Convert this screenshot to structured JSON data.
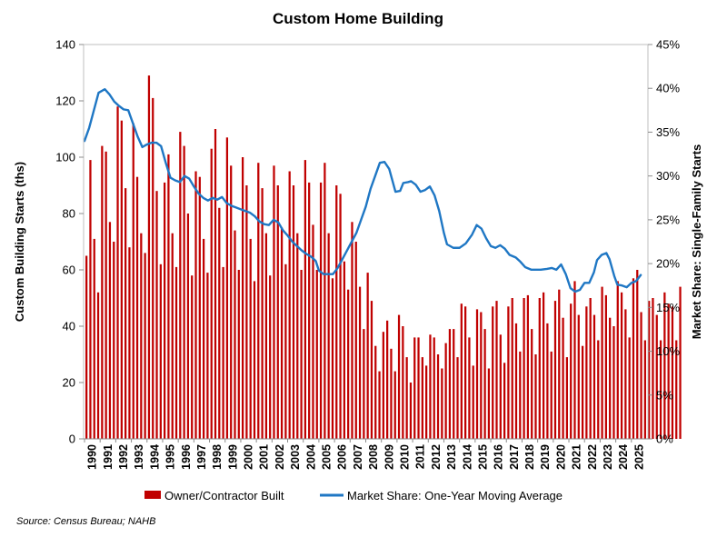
{
  "chart_data": {
    "type": "bar+line",
    "title": "Custom Home Building",
    "ylabel": "Custom Building Starts (ths)",
    "y2label": "Market Share: Single-Family Starts",
    "ylim": [
      0,
      140
    ],
    "yticks": [
      0,
      20,
      40,
      60,
      80,
      100,
      120,
      140
    ],
    "y2lim": [
      0,
      45
    ],
    "y2ticks": [
      "0%",
      "5%",
      "10%",
      "15%",
      "20%",
      "25%",
      "30%",
      "35%",
      "40%",
      "45%"
    ],
    "x_tick_labels": [
      "1990",
      "1991",
      "1992",
      "1993",
      "1994",
      "1995",
      "1996",
      "1997",
      "1998",
      "1999",
      "2000",
      "2001",
      "2002",
      "2003",
      "2004",
      "2005",
      "2006",
      "2007",
      "2008",
      "2009",
      "2010",
      "2011",
      "2012",
      "2013",
      "2014",
      "2015",
      "2016",
      "2017",
      "2018",
      "2019",
      "2020",
      "2021",
      "2022",
      "2023",
      "2024",
      "2025"
    ],
    "x_start_year": 1990,
    "grid": false,
    "legend_position": "bottom",
    "source": "Source: Census Bureau; NAHB",
    "series": [
      {
        "name": "Owner/Contractor Built",
        "type": "bar",
        "color": "#c00000",
        "frequency": "quarterly",
        "values": [
          65,
          99,
          71,
          52,
          104,
          102,
          77,
          70,
          118,
          113,
          89,
          68,
          112,
          93,
          73,
          66,
          129,
          121,
          88,
          62,
          91,
          101,
          73,
          61,
          109,
          104,
          80,
          58,
          95,
          93,
          71,
          59,
          103,
          110,
          82,
          61,
          107,
          97,
          74,
          60,
          100,
          90,
          71,
          56,
          98,
          89,
          73,
          58,
          97,
          90,
          75,
          62,
          95,
          90,
          73,
          60,
          99,
          91,
          76,
          60,
          91,
          98,
          73,
          57,
          90,
          87,
          63,
          53,
          77,
          70,
          54,
          39,
          59,
          49,
          33,
          24,
          38,
          42,
          32,
          24,
          44,
          40,
          29,
          20,
          36,
          36,
          29,
          26,
          37,
          36,
          30,
          25,
          34,
          39,
          39,
          29,
          48,
          47,
          36,
          26,
          46,
          45,
          39,
          25,
          47,
          49,
          37,
          27,
          47,
          50,
          41,
          31,
          50,
          51,
          39,
          30,
          50,
          52,
          41,
          31,
          49,
          53,
          43,
          29,
          48,
          56,
          44,
          33,
          47,
          50,
          44,
          35,
          54,
          51,
          43,
          40,
          56,
          52,
          46,
          36,
          57,
          60,
          45,
          35,
          49,
          50,
          44,
          35,
          52,
          48,
          47,
          35,
          54
        ]
      },
      {
        "name": "Market Share: One-Year Moving Average",
        "type": "line",
        "color": "#1f77c4",
        "unit": "percent",
        "points": [
          [
            1990.0,
            34.0
          ],
          [
            1990.3,
            35.5
          ],
          [
            1990.6,
            37.5
          ],
          [
            1990.9,
            39.5
          ],
          [
            1991.3,
            39.9
          ],
          [
            1991.6,
            39.3
          ],
          [
            1991.9,
            38.5
          ],
          [
            1992.2,
            38.0
          ],
          [
            1992.5,
            37.6
          ],
          [
            1992.8,
            37.5
          ],
          [
            1993.1,
            36.0
          ],
          [
            1993.4,
            34.5
          ],
          [
            1993.7,
            33.3
          ],
          [
            1994.0,
            33.6
          ],
          [
            1994.3,
            33.8
          ],
          [
            1994.6,
            33.8
          ],
          [
            1994.9,
            33.4
          ],
          [
            1995.2,
            31.5
          ],
          [
            1995.5,
            29.8
          ],
          [
            1995.8,
            29.5
          ],
          [
            1996.1,
            29.3
          ],
          [
            1996.4,
            30.0
          ],
          [
            1996.7,
            29.7
          ],
          [
            1997.0,
            28.8
          ],
          [
            1997.3,
            28.0
          ],
          [
            1997.6,
            27.5
          ],
          [
            1997.9,
            27.2
          ],
          [
            1998.2,
            27.5
          ],
          [
            1998.5,
            27.3
          ],
          [
            1998.8,
            27.6
          ],
          [
            1999.1,
            26.9
          ],
          [
            1999.4,
            26.6
          ],
          [
            1999.7,
            26.4
          ],
          [
            2000.0,
            26.2
          ],
          [
            2000.3,
            26.0
          ],
          [
            2000.6,
            25.8
          ],
          [
            2000.9,
            25.4
          ],
          [
            2001.2,
            24.8
          ],
          [
            2001.5,
            24.5
          ],
          [
            2001.8,
            24.4
          ],
          [
            2002.1,
            25.0
          ],
          [
            2002.4,
            24.7
          ],
          [
            2002.7,
            23.8
          ],
          [
            2003.0,
            23.2
          ],
          [
            2003.3,
            22.5
          ],
          [
            2003.6,
            22.0
          ],
          [
            2003.9,
            21.5
          ],
          [
            2004.2,
            21.1
          ],
          [
            2004.5,
            20.8
          ],
          [
            2004.8,
            20.3
          ],
          [
            2005.0,
            19.2
          ],
          [
            2005.3,
            18.8
          ],
          [
            2005.6,
            18.8
          ],
          [
            2005.9,
            18.8
          ],
          [
            2006.2,
            19.5
          ],
          [
            2006.5,
            20.5
          ],
          [
            2006.8,
            21.5
          ],
          [
            2007.1,
            22.5
          ],
          [
            2007.4,
            23.5
          ],
          [
            2007.7,
            25.0
          ],
          [
            2008.0,
            26.5
          ],
          [
            2008.3,
            28.5
          ],
          [
            2008.6,
            30.0
          ],
          [
            2008.9,
            31.5
          ],
          [
            2009.2,
            31.6
          ],
          [
            2009.5,
            30.8
          ],
          [
            2009.7,
            29.5
          ],
          [
            2009.9,
            28.2
          ],
          [
            2010.2,
            28.3
          ],
          [
            2010.4,
            29.2
          ],
          [
            2010.7,
            29.3
          ],
          [
            2010.9,
            29.4
          ],
          [
            2011.2,
            29.0
          ],
          [
            2011.5,
            28.2
          ],
          [
            2011.8,
            28.4
          ],
          [
            2012.1,
            28.8
          ],
          [
            2012.4,
            27.8
          ],
          [
            2012.7,
            26.0
          ],
          [
            2013.0,
            23.5
          ],
          [
            2013.2,
            22.2
          ],
          [
            2013.6,
            21.8
          ],
          [
            2014.0,
            21.8
          ],
          [
            2014.4,
            22.3
          ],
          [
            2014.8,
            23.3
          ],
          [
            2015.1,
            24.4
          ],
          [
            2015.4,
            24.0
          ],
          [
            2015.7,
            22.9
          ],
          [
            2016.0,
            22.0
          ],
          [
            2016.3,
            21.8
          ],
          [
            2016.6,
            22.1
          ],
          [
            2016.9,
            21.7
          ],
          [
            2017.2,
            21.0
          ],
          [
            2017.6,
            20.7
          ],
          [
            2017.9,
            20.2
          ],
          [
            2018.2,
            19.6
          ],
          [
            2018.6,
            19.3
          ],
          [
            2018.9,
            19.3
          ],
          [
            2019.2,
            19.3
          ],
          [
            2019.6,
            19.4
          ],
          [
            2019.9,
            19.5
          ],
          [
            2020.2,
            19.3
          ],
          [
            2020.5,
            19.9
          ],
          [
            2020.8,
            18.8
          ],
          [
            2021.1,
            17.2
          ],
          [
            2021.4,
            16.8
          ],
          [
            2021.7,
            17.0
          ],
          [
            2022.0,
            17.8
          ],
          [
            2022.3,
            17.8
          ],
          [
            2022.6,
            19.0
          ],
          [
            2022.8,
            20.4
          ],
          [
            2023.1,
            21.0
          ],
          [
            2023.4,
            21.2
          ],
          [
            2023.6,
            20.5
          ],
          [
            2023.9,
            18.6
          ],
          [
            2024.1,
            17.6
          ],
          [
            2024.4,
            17.5
          ],
          [
            2024.7,
            17.3
          ],
          [
            2025.0,
            17.8
          ],
          [
            2025.3,
            18.0
          ],
          [
            2025.6,
            18.7
          ]
        ]
      }
    ]
  }
}
